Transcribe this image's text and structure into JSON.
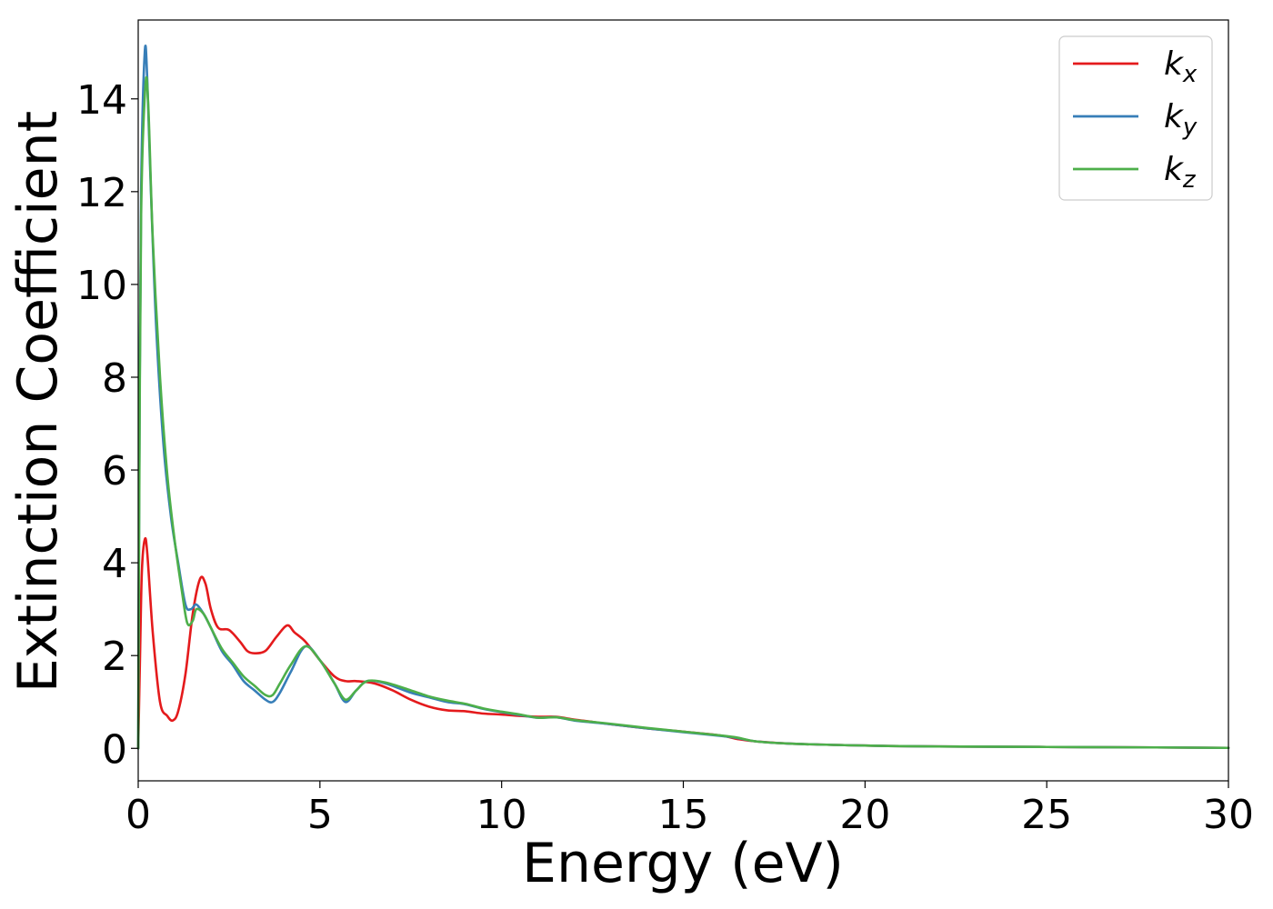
{
  "chart_data": {
    "type": "line",
    "title": "",
    "xlabel": "Energy (eV)",
    "ylabel": "Extinction Coefficient",
    "xlim": [
      0,
      30
    ],
    "ylim": [
      -0.7,
      15.7
    ],
    "xticks": [
      0,
      5,
      10,
      15,
      20,
      25,
      30
    ],
    "yticks": [
      0,
      2,
      4,
      6,
      8,
      10,
      12,
      14
    ],
    "grid": false,
    "legend_position": "top-right",
    "series": [
      {
        "name": "k",
        "subscript": "x",
        "color": "#e41a1c",
        "x": [
          0,
          0.05,
          0.1,
          0.18,
          0.25,
          0.4,
          0.6,
          0.8,
          0.95,
          1.1,
          1.3,
          1.5,
          1.7,
          1.85,
          2.0,
          2.2,
          2.5,
          2.8,
          3.0,
          3.2,
          3.5,
          3.8,
          4.1,
          4.3,
          4.6,
          5.0,
          5.4,
          5.7,
          6.0,
          6.5,
          7.0,
          7.5,
          8.0,
          8.5,
          9.0,
          9.5,
          10.0,
          10.5,
          11.0,
          11.5,
          12.0,
          12.5,
          13.0,
          14.0,
          15.0,
          16.0,
          16.5,
          17.0,
          18.0,
          20.0,
          22.0,
          25.0,
          28.0,
          30.0
        ],
        "y": [
          0,
          2.0,
          3.8,
          4.5,
          4.2,
          2.5,
          1.0,
          0.7,
          0.6,
          0.8,
          1.6,
          2.9,
          3.65,
          3.55,
          3.0,
          2.6,
          2.55,
          2.3,
          2.1,
          2.05,
          2.1,
          2.4,
          2.65,
          2.5,
          2.3,
          1.9,
          1.55,
          1.45,
          1.45,
          1.4,
          1.25,
          1.05,
          0.9,
          0.82,
          0.8,
          0.75,
          0.73,
          0.7,
          0.68,
          0.68,
          0.62,
          0.57,
          0.52,
          0.43,
          0.36,
          0.28,
          0.2,
          0.15,
          0.1,
          0.06,
          0.04,
          0.03,
          0.02,
          0.01
        ]
      },
      {
        "name": "k",
        "subscript": "y",
        "color": "#377eb8",
        "x": [
          0,
          0.03,
          0.08,
          0.18,
          0.25,
          0.35,
          0.5,
          0.7,
          0.9,
          1.1,
          1.3,
          1.45,
          1.6,
          1.8,
          2.0,
          2.3,
          2.6,
          2.9,
          3.2,
          3.5,
          3.7,
          3.9,
          4.2,
          4.6,
          5.0,
          5.4,
          5.7,
          6.0,
          6.3,
          6.8,
          7.5,
          8.0,
          8.5,
          9.0,
          9.5,
          10.0,
          10.5,
          11.0,
          11.5,
          12.0,
          12.5,
          13.0,
          14.0,
          15.0,
          16.0,
          16.5,
          17.0,
          18.0,
          20.0,
          22.0,
          25.0,
          28.0,
          30.0
        ],
        "y": [
          0,
          6.0,
          12.0,
          15.0,
          14.4,
          12.0,
          9.0,
          6.5,
          5.0,
          4.0,
          3.1,
          3.0,
          3.1,
          2.9,
          2.6,
          2.1,
          1.8,
          1.45,
          1.25,
          1.05,
          1.0,
          1.2,
          1.65,
          2.2,
          1.9,
          1.4,
          1.0,
          1.25,
          1.45,
          1.4,
          1.2,
          1.1,
          1.0,
          0.95,
          0.85,
          0.78,
          0.72,
          0.66,
          0.67,
          0.6,
          0.56,
          0.52,
          0.43,
          0.35,
          0.27,
          0.22,
          0.15,
          0.1,
          0.06,
          0.04,
          0.03,
          0.02,
          0.01
        ]
      },
      {
        "name": "k",
        "subscript": "z",
        "color": "#4daf4a",
        "x": [
          0,
          0.03,
          0.08,
          0.2,
          0.28,
          0.4,
          0.6,
          0.8,
          1.0,
          1.2,
          1.35,
          1.5,
          1.6,
          1.8,
          2.0,
          2.3,
          2.6,
          2.9,
          3.2,
          3.5,
          3.7,
          3.9,
          4.2,
          4.6,
          5.0,
          5.4,
          5.7,
          6.0,
          6.3,
          6.8,
          7.5,
          8.0,
          8.5,
          9.0,
          9.5,
          10.0,
          10.5,
          11.0,
          11.5,
          12.0,
          12.5,
          13.0,
          14.0,
          15.0,
          16.0,
          16.5,
          17.0,
          18.0,
          20.0,
          22.0,
          25.0,
          28.0,
          30.0
        ],
        "y": [
          0,
          5.5,
          11.5,
          14.3,
          13.8,
          11.0,
          8.0,
          5.9,
          4.5,
          3.4,
          2.7,
          2.75,
          3.0,
          2.9,
          2.6,
          2.15,
          1.85,
          1.55,
          1.35,
          1.15,
          1.15,
          1.4,
          1.8,
          2.2,
          1.9,
          1.4,
          1.05,
          1.25,
          1.45,
          1.42,
          1.25,
          1.12,
          1.03,
          0.96,
          0.86,
          0.79,
          0.73,
          0.66,
          0.67,
          0.61,
          0.57,
          0.53,
          0.44,
          0.36,
          0.28,
          0.23,
          0.15,
          0.1,
          0.06,
          0.04,
          0.03,
          0.02,
          0.01
        ]
      }
    ]
  }
}
